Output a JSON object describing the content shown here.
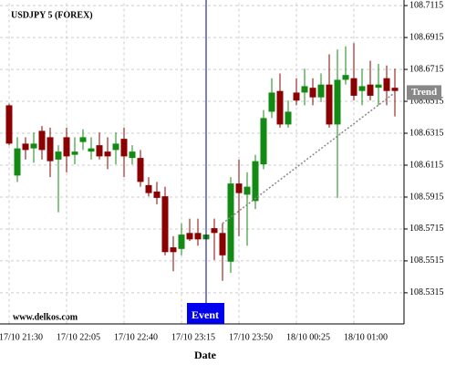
{
  "chart_data": {
    "type": "candlestick",
    "title": "USDJPY 5 (FOREX)",
    "x_label": "Date",
    "watermark": "www.delkos.com",
    "categories": [
      "17/10 21:30",
      null,
      null,
      null,
      null,
      null,
      null,
      "17/10 22:05",
      null,
      null,
      null,
      null,
      null,
      null,
      "17/10 22:40",
      null,
      null,
      null,
      null,
      null,
      null,
      "17/10 23:15",
      null,
      null,
      null,
      null,
      null,
      null,
      "17/10 23:50",
      null,
      null,
      null,
      null,
      null,
      null,
      "18/10 00:25",
      null,
      null,
      null,
      null,
      null,
      null,
      "18/10 01:00",
      null,
      null,
      null,
      null,
      null
    ],
    "open": [
      108.649,
      108.605,
      108.625,
      108.622,
      108.633,
      108.629,
      108.615,
      108.629,
      108.618,
      108.626,
      108.62,
      108.624,
      108.62,
      108.621,
      108.628,
      108.616,
      108.616,
      108.599,
      108.595,
      108.592,
      108.56,
      108.559,
      108.569,
      108.569,
      108.565,
      108.572,
      108.569,
      108.551,
      108.6,
      108.593,
      108.589,
      108.612,
      108.645,
      108.658,
      108.637,
      108.657,
      108.657,
      108.66,
      108.654,
      108.662,
      108.637,
      108.665,
      108.666,
      108.658,
      108.662,
      108.66,
      108.666,
      108.66
    ],
    "high": [
      108.65,
      108.629,
      108.629,
      108.632,
      108.636,
      108.635,
      108.624,
      108.635,
      108.629,
      108.634,
      108.629,
      108.632,
      108.629,
      108.632,
      108.635,
      108.624,
      108.621,
      108.604,
      108.601,
      108.598,
      108.567,
      108.575,
      108.578,
      108.578,
      108.575,
      108.578,
      108.575,
      108.604,
      108.615,
      108.607,
      108.618,
      108.646,
      108.666,
      108.669,
      108.652,
      108.666,
      108.672,
      108.666,
      108.669,
      108.681,
      108.684,
      108.686,
      108.688,
      108.672,
      108.677,
      108.675,
      108.674,
      108.672
    ],
    "low": [
      108.624,
      108.601,
      108.615,
      108.613,
      108.615,
      108.604,
      108.582,
      108.607,
      108.612,
      108.621,
      108.615,
      108.615,
      108.609,
      108.612,
      108.604,
      108.612,
      108.598,
      108.592,
      108.587,
      108.555,
      108.545,
      108.555,
      108.564,
      108.561,
      108.555,
      108.552,
      108.539,
      108.544,
      108.567,
      108.561,
      108.584,
      108.609,
      108.641,
      108.635,
      108.635,
      108.649,
      108.649,
      108.649,
      108.651,
      108.635,
      108.591,
      108.662,
      108.652,
      108.649,
      108.652,
      108.649,
      108.649,
      108.642
    ],
    "close": [
      108.625,
      108.622,
      108.621,
      108.625,
      108.621,
      108.614,
      108.62,
      108.617,
      108.62,
      108.629,
      108.622,
      108.617,
      108.617,
      108.625,
      108.617,
      108.62,
      108.601,
      108.594,
      108.591,
      108.557,
      108.557,
      108.568,
      108.565,
      108.565,
      108.568,
      108.569,
      108.555,
      108.6,
      108.594,
      108.598,
      108.614,
      108.641,
      108.657,
      108.637,
      108.645,
      108.652,
      108.661,
      108.654,
      108.662,
      108.637,
      108.665,
      108.668,
      108.655,
      108.661,
      108.655,
      108.662,
      108.658,
      108.658
    ],
    "up_color": "#138a13",
    "down_color": "#8b0000",
    "ylim": [
      108.512,
      108.713
    ],
    "yticks": [
      108.5315,
      108.5515,
      108.5715,
      108.5915,
      108.6115,
      108.6315,
      108.6515,
      108.6715,
      108.6915,
      108.7115
    ],
    "grid": true,
    "event": {
      "label": "Event",
      "index": 24,
      "color": "#0000ee"
    },
    "trend": {
      "label": "Trend",
      "from": [
        26,
        108.575
      ],
      "to": [
        47,
        108.657
      ],
      "color": "#888888"
    }
  }
}
